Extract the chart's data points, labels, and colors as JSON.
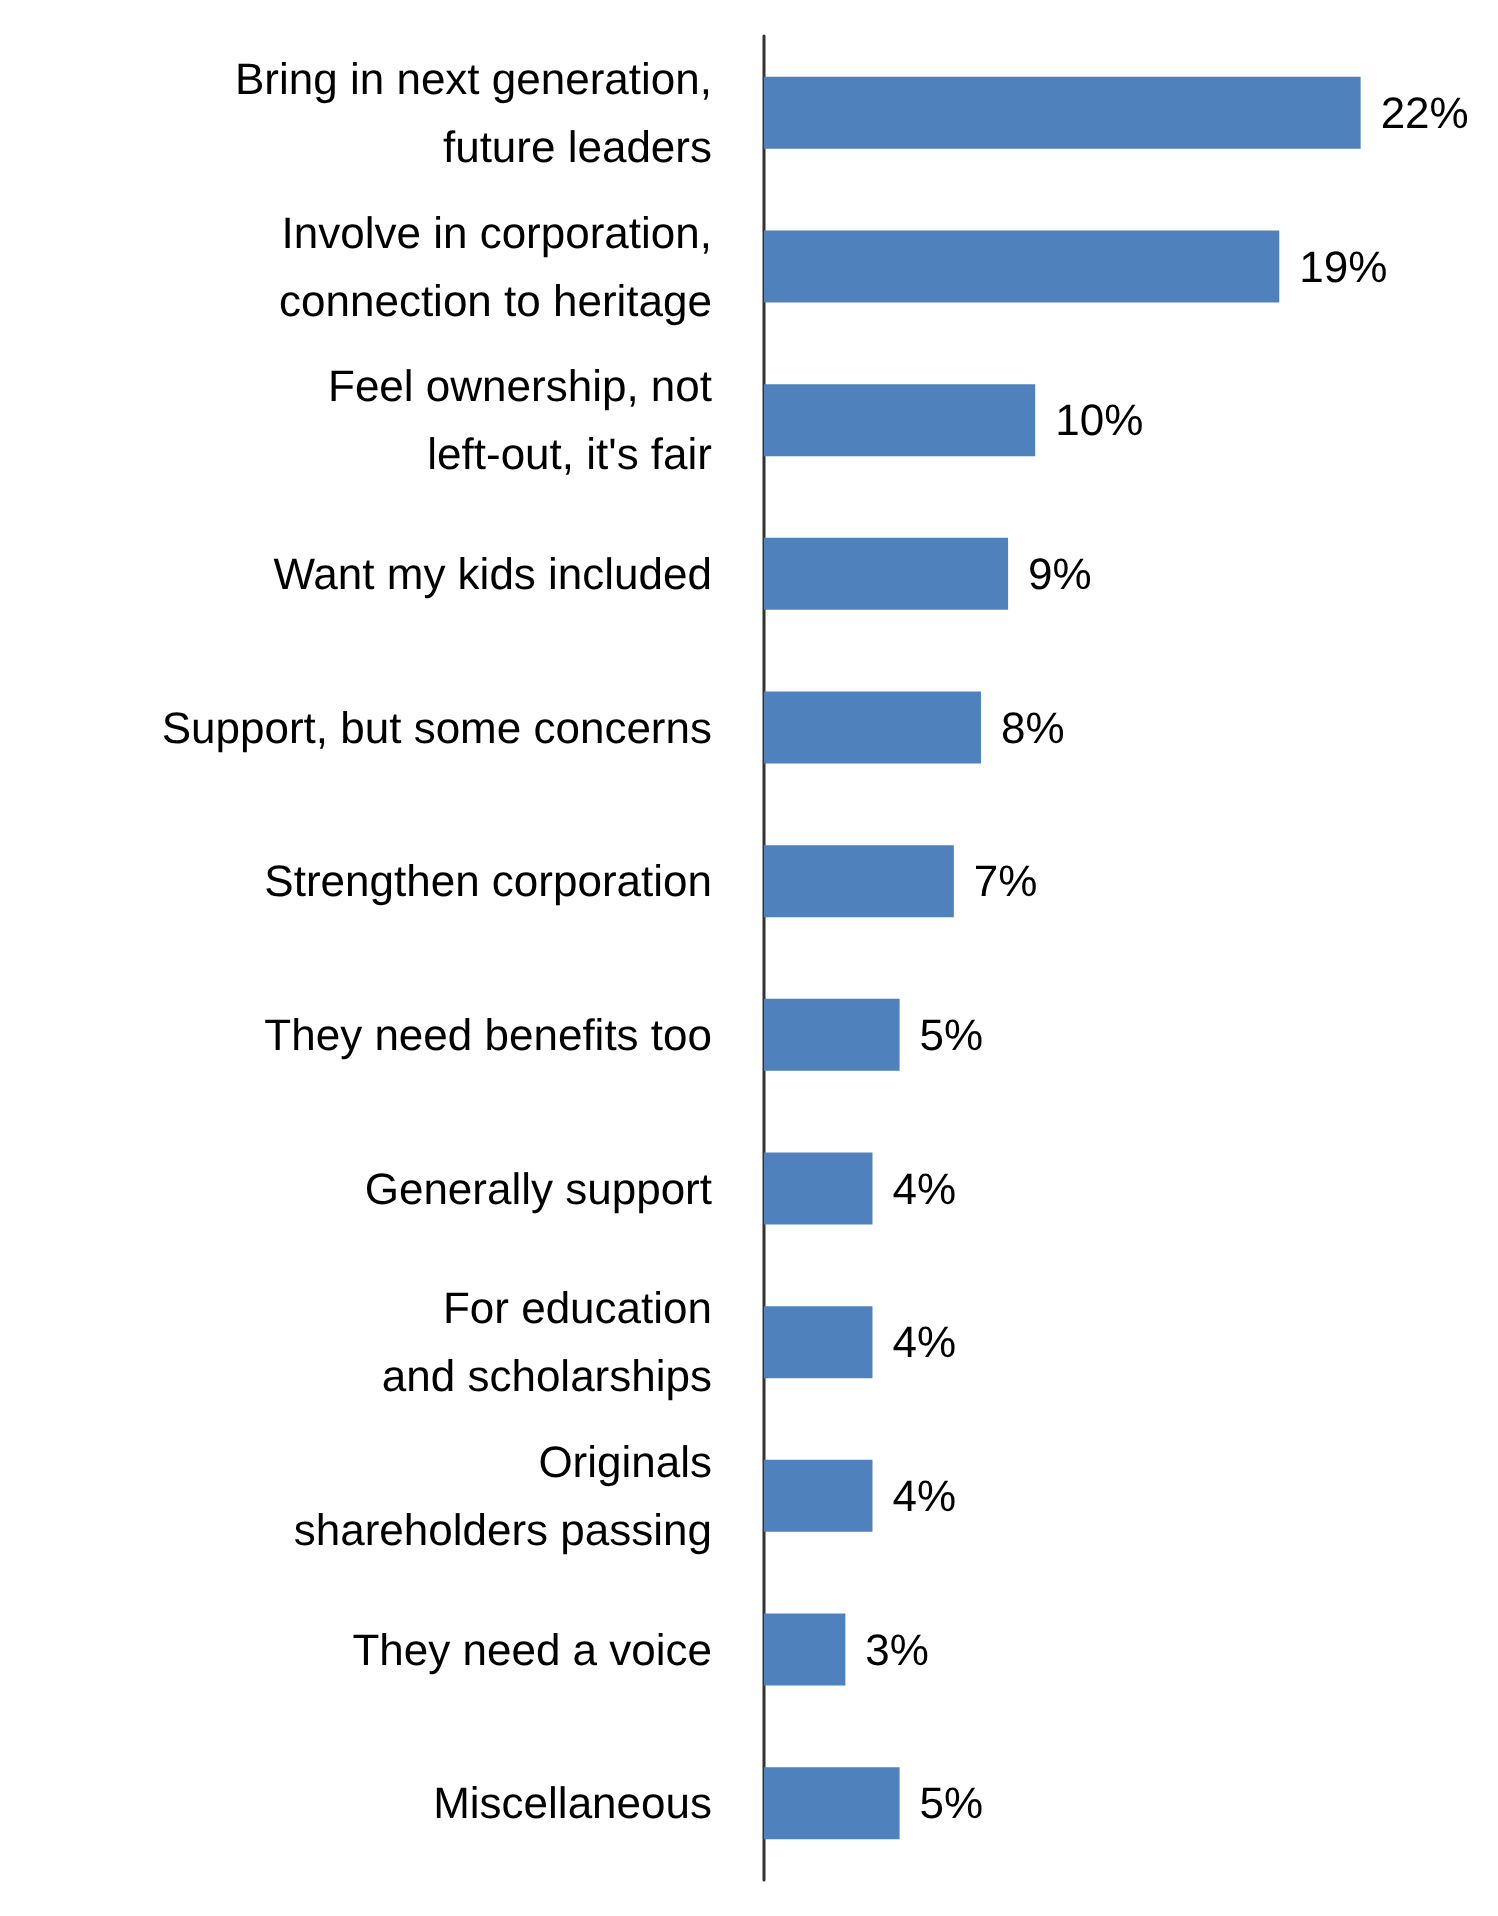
{
  "chart_data": {
    "type": "bar",
    "orientation": "horizontal",
    "categories": [
      "Bring in next generation,\nfuture leaders",
      "Involve in corporation,\nconnection to heritage",
      "Feel ownership, not\nleft-out, it's fair",
      "Want my kids included",
      "Support, but some concerns",
      "Strengthen corporation",
      "They need benefits too",
      "Generally support",
      "For education\nand scholarships",
      "Originals\nshareholders passing",
      "They need a voice",
      "Miscellaneous"
    ],
    "values": [
      22,
      19,
      10,
      9,
      8,
      7,
      5,
      4,
      4,
      4,
      3,
      5
    ],
    "value_labels": [
      "22%",
      "19%",
      "10%",
      "9%",
      "8%",
      "7%",
      "5%",
      "4%",
      "4%",
      "4%",
      "3%",
      "5%"
    ],
    "color": "#4f81bd"
  }
}
